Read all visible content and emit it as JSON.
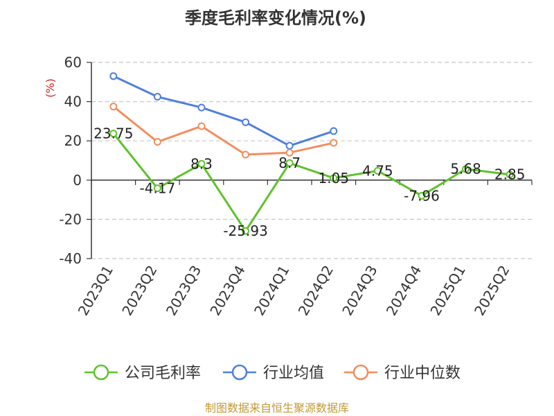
{
  "chart_data": {
    "type": "line",
    "title": "季度毛利率变化情况(%)",
    "ylabel": "(%)",
    "xlabel": "",
    "categories": [
      "2023Q1",
      "2023Q2",
      "2023Q3",
      "2023Q4",
      "2024Q1",
      "2024Q2",
      "2024Q3",
      "2024Q4",
      "2025Q1",
      "2025Q2"
    ],
    "ylim": [
      -40,
      60
    ],
    "yticks": [
      60,
      40,
      20,
      0,
      -20,
      -40
    ],
    "grid": true,
    "legend_position": "bottom",
    "series": [
      {
        "name": "公司毛利率",
        "color": "#5ec22b",
        "values": [
          23.75,
          -4.17,
          8.3,
          -25.93,
          8.7,
          1.05,
          4.75,
          -7.96,
          5.68,
          2.85
        ],
        "labels": [
          "23.75",
          "-4.17",
          "8.3",
          "-25.93",
          "8.7",
          "1.05",
          "4.75",
          "-7.96",
          "5.68",
          "2.85"
        ]
      },
      {
        "name": "行业均值",
        "color": "#4e7fdc",
        "values": [
          53,
          42.5,
          37,
          29.5,
          17.5,
          25,
          null,
          null,
          null,
          null
        ]
      },
      {
        "name": "行业中位数",
        "color": "#f58c5c",
        "values": [
          37.5,
          19.5,
          27.5,
          13,
          14,
          19,
          null,
          null,
          null,
          null
        ]
      }
    ]
  },
  "source": {
    "text": "制图数据来自恒生聚源数据库",
    "color": "#c09a3a"
  },
  "unit_color": "#dd2222"
}
